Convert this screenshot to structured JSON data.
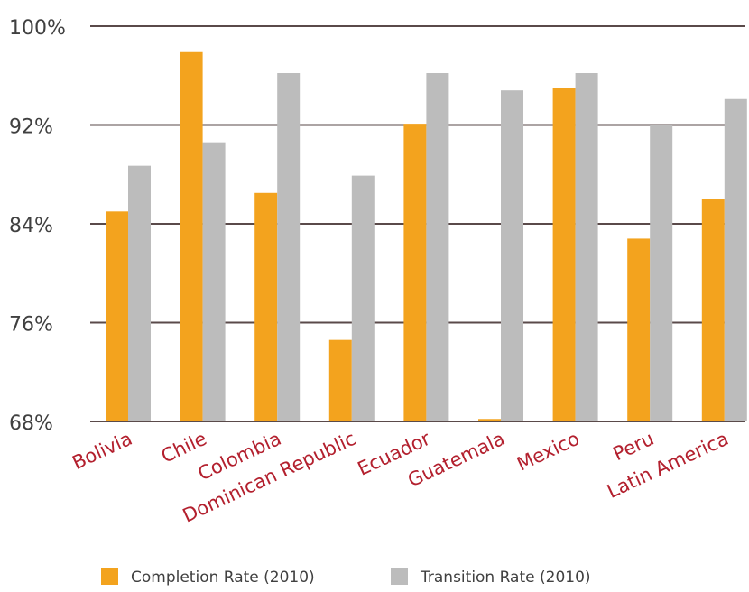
{
  "chart_data": {
    "type": "bar",
    "categories": [
      "Bolivia",
      "Chile",
      "Colombia",
      "Dominican Republic",
      "Ecuador",
      "Guatemala",
      "Mexico",
      "Peru",
      "Latin America"
    ],
    "series": [
      {
        "name": "Completion Rate (2010)",
        "color": "#f3a31e",
        "values": [
          85.0,
          97.9,
          86.5,
          74.6,
          92.1,
          68.2,
          95.0,
          82.8,
          86.0
        ]
      },
      {
        "name": "Transition Rate (2010)",
        "color": "#bcbcbc",
        "values": [
          88.7,
          90.6,
          96.2,
          87.9,
          96.2,
          94.8,
          96.2,
          92.0,
          94.1
        ]
      }
    ],
    "ylim": [
      68,
      100
    ],
    "yticks": [
      68,
      76,
      84,
      92,
      100
    ],
    "ytick_labels": [
      "68%",
      "76%",
      "84%",
      "92%",
      "100%"
    ],
    "title": "",
    "xlabel": "",
    "ylabel": "",
    "grid": true,
    "legend_position": "bottom",
    "colors": {
      "category_label": "#b3202e",
      "tick_label": "#404040",
      "grid": "#5a4a4a",
      "legend_text": "#404040"
    }
  }
}
